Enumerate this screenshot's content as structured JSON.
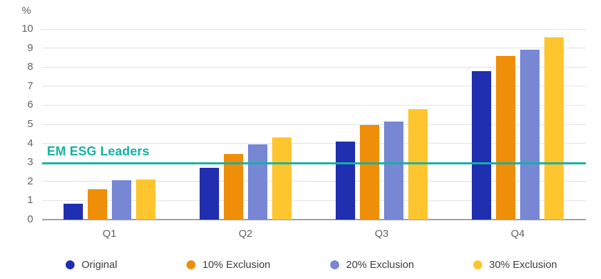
{
  "chart_data": {
    "type": "bar",
    "title": "",
    "unit_label": "%",
    "categories": [
      "Q1",
      "Q2",
      "Q3",
      "Q4"
    ],
    "series": [
      {
        "name": "Original",
        "color": "#1f2fb0",
        "values": [
          0.85,
          2.7,
          4.1,
          7.8
        ]
      },
      {
        "name": "10% Exclusion",
        "color": "#ef8e09",
        "values": [
          1.6,
          3.45,
          4.95,
          8.6
        ]
      },
      {
        "name": "20% Exclusion",
        "color": "#7787d4",
        "values": [
          2.05,
          3.95,
          5.15,
          8.9
        ]
      },
      {
        "name": "30% Exclusion",
        "color": "#fdc62f",
        "values": [
          2.1,
          4.3,
          5.8,
          9.55
        ]
      }
    ],
    "reference_line": {
      "label": "EM ESG Leaders",
      "value": 2.95,
      "color": "#10b3a3"
    },
    "ylim": [
      0,
      10
    ],
    "ytick_step": 1,
    "grid": true,
    "legend_position": "bottom"
  }
}
